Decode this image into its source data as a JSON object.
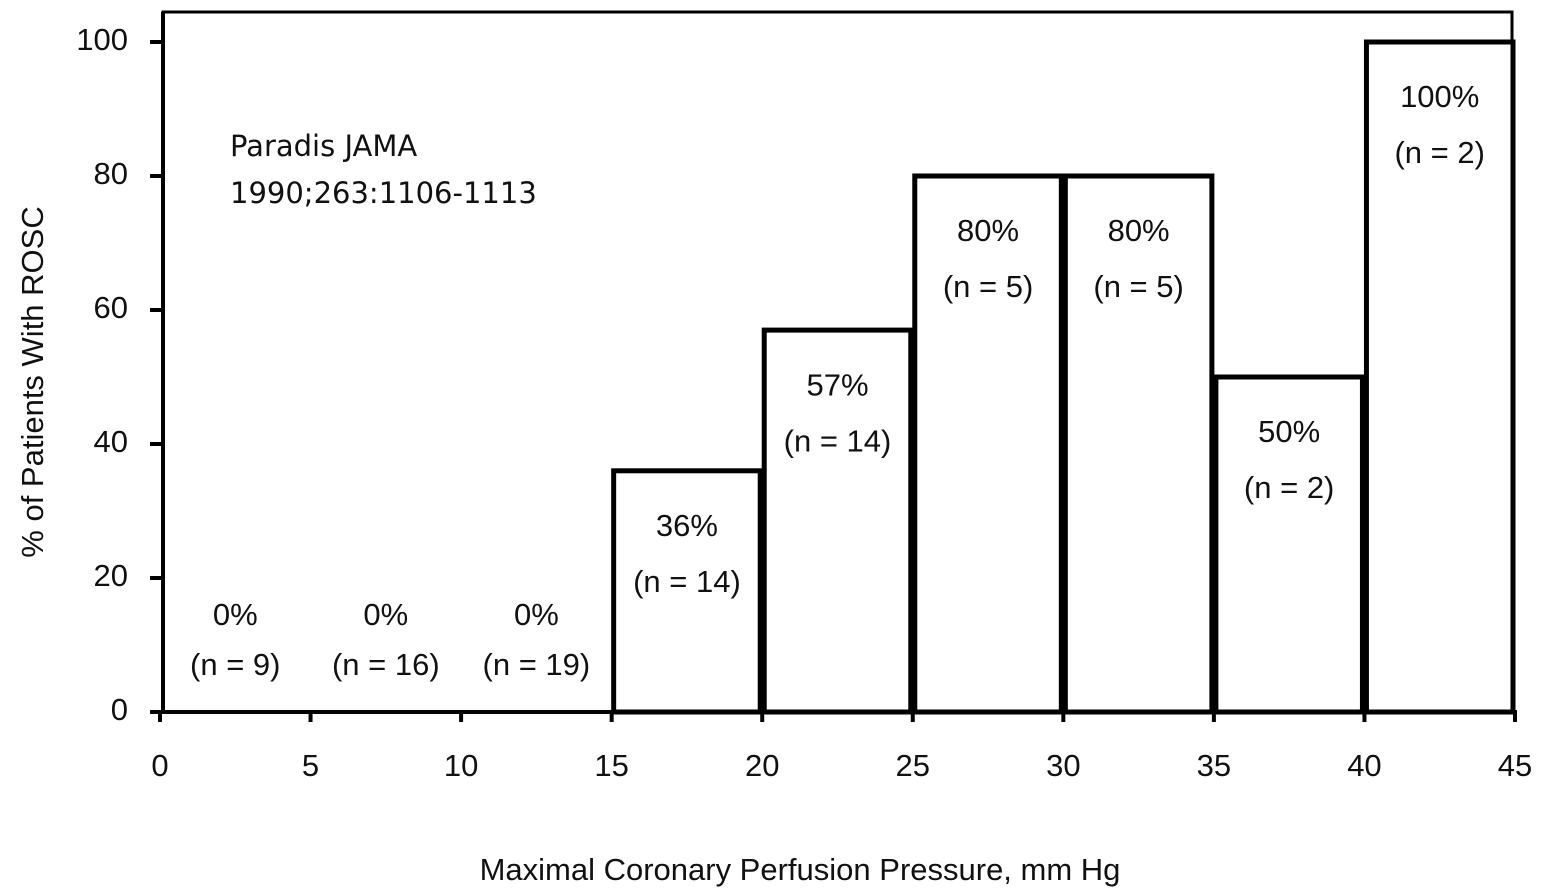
{
  "chart_data": {
    "type": "histogram",
    "x_label": "Maximal Coronary Perfusion Pressure, mm Hg",
    "y_label": "% of Patients With ROSC",
    "annotation": [
      "Paradis JAMA",
      "1990;263:1106-1113"
    ],
    "bins": [
      0,
      5,
      10,
      15,
      20,
      25,
      30,
      35,
      40,
      45
    ],
    "values": [
      0,
      0,
      0,
      36,
      57,
      80,
      80,
      50,
      100
    ],
    "value_labels": [
      "0%",
      "0%",
      "0%",
      "36%",
      "57%",
      "80%",
      "80%",
      "50%",
      "100%"
    ],
    "count_labels": [
      "(n = 9)",
      "(n = 16)",
      "(n = 19)",
      "(n = 14)",
      "(n = 14)",
      "(n = 5)",
      "(n = 5)",
      "(n = 2)",
      "(n = 2)"
    ],
    "color": "#ffffff",
    "edge_color": "#000000",
    "xlim": [
      0,
      45
    ],
    "xticks": [
      0,
      5,
      10,
      15,
      20,
      25,
      30,
      35,
      40,
      45
    ],
    "ylim": [
      0,
      100
    ],
    "yticks": [
      0,
      20,
      40,
      60,
      80,
      100
    ],
    "grid": false
  }
}
